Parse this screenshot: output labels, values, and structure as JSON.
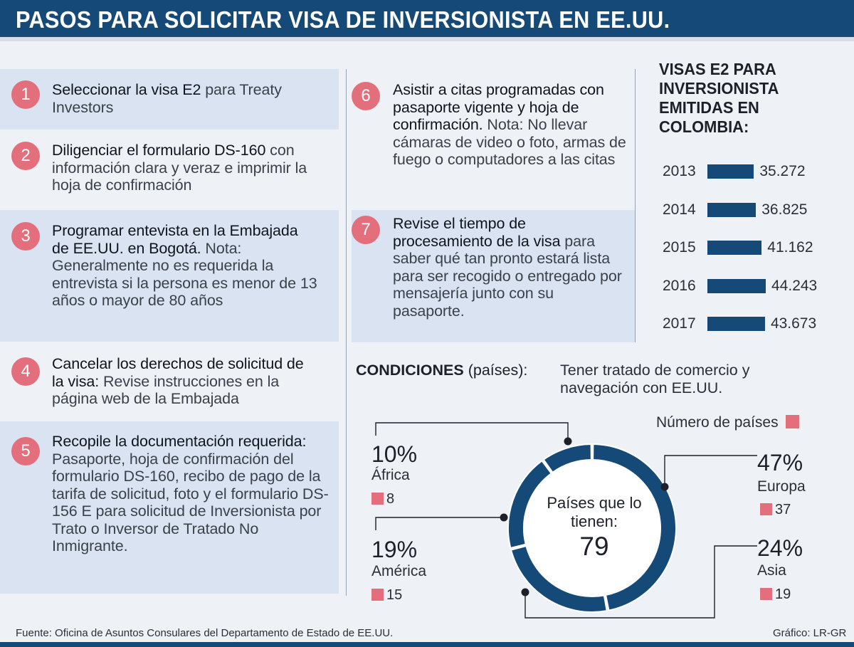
{
  "title": "PASOS PARA SOLICITAR VISA DE INVERSIONISTA EN EE.UU.",
  "steps": [
    {
      "num": "1",
      "bold": "Seleccionar la visa E2",
      "text": " para Treaty Investors"
    },
    {
      "num": "2",
      "bold": "Diligenciar el formulario DS-160",
      "text": " con información clara y veraz e imprimir la hoja de confirmación"
    },
    {
      "num": "3",
      "bold": "Programar entevista en la Embajada de EE.UU. en Bogotá.",
      "text": " Nota: Generalmente no es requerida la entrevista si la persona es menor de 13 años o mayor de 80 años"
    },
    {
      "num": "4",
      "bold": "Cancelar los derechos de solicitud de la visa:",
      "text": " Revise instrucciones en la página web de la Embajada"
    },
    {
      "num": "5",
      "bold": "Recopile la documentación requerida:",
      "text": " Pasaporte, hoja de confirmación del formulario DS-160, recibo de pago de la tarifa de solicitud, foto y el formulario DS-156 E para solicitud de Inversionista por Trato o Inversor de Tratado No Inmigrante."
    },
    {
      "num": "6",
      "bold": "Asistir a citas programadas con pasaporte vigente y hoja de confirmación.",
      "text": " Nota: No llevar cámaras de video o foto, armas de fuego o computadores a las citas"
    },
    {
      "num": "7",
      "bold": "Revise el tiempo de procesamiento de la visa",
      "text": " para saber qué tan pronto estará lista para ser recogido o entregado por mensajería junto con su pasaporte."
    }
  ],
  "chart_data": [
    {
      "type": "bar",
      "title": "VISAS E2 PARA INVERSIONISTA EMITIDAS EN COLOMBIA:",
      "categories": [
        "2013",
        "2014",
        "2015",
        "2016",
        "2017"
      ],
      "values": [
        35272,
        36825,
        41162,
        44243,
        43673
      ],
      "value_labels": [
        "35.272",
        "36.825",
        "41.162",
        "44.243",
        "43.673"
      ],
      "orientation": "horizontal",
      "color": "#154a78"
    },
    {
      "type": "pie",
      "title": "CONDICIONES",
      "title_suffix": "(países):",
      "description": "Tener tratado de comercio y navegación con EE.UU.",
      "legend": "Número de países",
      "center_label": "Países que lo tienen:",
      "center_value": "79",
      "slices": [
        {
          "region": "Europa",
          "percent": 47,
          "percent_label": "47%",
          "count": 37
        },
        {
          "region": "Asia",
          "percent": 24,
          "percent_label": "24%",
          "count": 19
        },
        {
          "region": "América",
          "percent": 19,
          "percent_label": "19%",
          "count": 15
        },
        {
          "region": "África",
          "percent": 10,
          "percent_label": "10%",
          "count": 8
        }
      ],
      "color": "#154a78",
      "accent": "#e36e7c"
    }
  ],
  "footer": {
    "source": "Fuente: Oficina de Asuntos Consulares del Departamento de Estado de EE.UU.",
    "credit": "Gráfico: LR-GR"
  }
}
